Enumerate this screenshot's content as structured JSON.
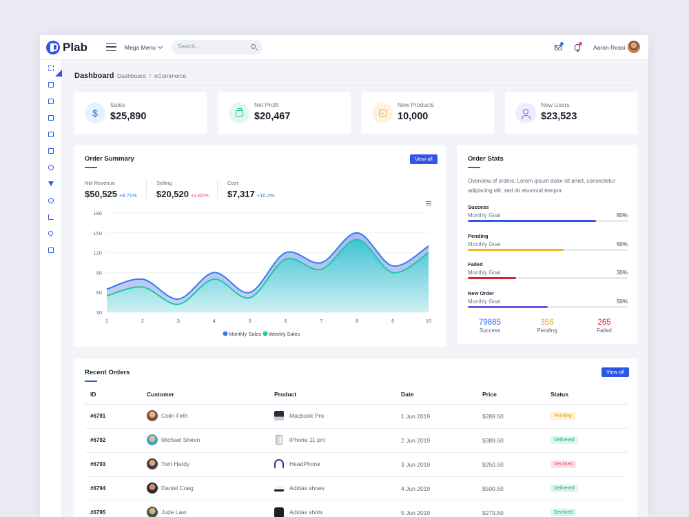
{
  "app": {
    "name": "Plab"
  },
  "topbar": {
    "mega_menu": "Mega Menu",
    "search_placeholder": "Search...",
    "user_name": "Aaron Rossi"
  },
  "page": {
    "title": "Dashboard",
    "breadcrumb": [
      "Dashboard",
      "/",
      "eCommerce"
    ]
  },
  "stats": [
    {
      "label": "Sales",
      "value": "$25,890",
      "icon": "dollar-icon",
      "color": "#2f6ff0",
      "bg": "#e8effd"
    },
    {
      "label": "Net Profit",
      "value": "$20,467",
      "icon": "briefcase-icon",
      "color": "#1cb89a",
      "bg": "#e3f7f2"
    },
    {
      "label": "New Products",
      "value": "10,000",
      "icon": "cart-icon",
      "color": "#e9a917",
      "bg": "#fdf4e0"
    },
    {
      "label": "New Users",
      "value": "$23,523",
      "icon": "users-icon",
      "color": "#7b62e0",
      "bg": "#efecfc"
    }
  ],
  "order_summary": {
    "title": "Order Summary",
    "view_all": "View all",
    "kpis": [
      {
        "label": "Net Revenue",
        "value": "$50,525",
        "delta": "+8.71%",
        "delta_color": "#2f6ff0"
      },
      {
        "label": "Selling",
        "value": "$20,520",
        "delta": "+2.82%",
        "delta_color": "#ee3a5a"
      },
      {
        "label": "Cost",
        "value": "$7,317",
        "delta": "+10.2%",
        "delta_color": "#2f6ff0"
      }
    ]
  },
  "chart_data": {
    "type": "area",
    "x": [
      1,
      2,
      3,
      4,
      5,
      6,
      7,
      8,
      9,
      10
    ],
    "ylim": [
      30,
      180
    ],
    "yticks": [
      30,
      60,
      90,
      120,
      150,
      180
    ],
    "grid": true,
    "legend": "bottom",
    "series": [
      {
        "name": "Monthly Sales",
        "color": "#2f7df0",
        "values": [
          65,
          80,
          50,
          90,
          60,
          120,
          105,
          150,
          100,
          130
        ]
      },
      {
        "name": "Weekly Sales",
        "color": "#1ec8a0",
        "values": [
          55,
          68,
          42,
          80,
          52,
          110,
          95,
          140,
          90,
          120
        ]
      }
    ]
  },
  "order_stats": {
    "title": "Order Stats",
    "description": "Overview of orders. Lorem ipsum dolor sit amet, consectetur adipiscing elit, sed do eiusmod tempor.",
    "goal_label": "Monthly Goal",
    "rows": [
      {
        "name": "Success",
        "pct": "80%",
        "value": 0.8,
        "color": "#2f56e6"
      },
      {
        "name": "Pending",
        "pct": "60%",
        "value": 0.6,
        "color": "#f5b71a"
      },
      {
        "name": "Failed",
        "pct": "30%",
        "value": 0.3,
        "color": "#cf2535"
      },
      {
        "name": "New Order",
        "pct": "50%",
        "value": 0.5,
        "color": "#6a55e0"
      }
    ],
    "counts": [
      {
        "value": "79885",
        "label": "Success",
        "color": "#2f6ff0"
      },
      {
        "value": "356",
        "label": "Pending",
        "color": "#f0a417"
      },
      {
        "value": "265",
        "label": "Failed",
        "color": "#d42b3b"
      }
    ]
  },
  "recent_orders": {
    "title": "Recent Orders",
    "view_all": "View all",
    "columns": [
      "ID",
      "Customer",
      "Product",
      "Date",
      "Price",
      "Status"
    ],
    "rows": [
      {
        "id": "#6791",
        "customer": "Colin Firth",
        "product": "Macbook Pro",
        "product_icon": "laptop-icon",
        "date": "1 Jun 2019",
        "price": "$289.50",
        "status": "Pending",
        "status_color": "#d9a21a",
        "status_bg": "#fdf2d6"
      },
      {
        "id": "#6792",
        "customer": "Michael Sheen",
        "product": "iPhone 11 pro",
        "product_icon": "phone-icon",
        "date": "2 Jun 2019",
        "price": "$389.50",
        "status": "Delivered",
        "status_color": "#18a57c",
        "status_bg": "#dbf6ec"
      },
      {
        "id": "#6793",
        "customer": "Tom Hardy",
        "product": "HeadPhone",
        "product_icon": "headphone-icon",
        "date": "3 Jun 2019",
        "price": "$250.50",
        "status": "Declined",
        "status_color": "#e0435a",
        "status_bg": "#fde3e7"
      },
      {
        "id": "#6794",
        "customer": "Daniel Craig",
        "product": "Adidas shoes",
        "product_icon": "shoe-icon",
        "date": "4 Jun 2019",
        "price": "$500.50",
        "status": "Delivered",
        "status_color": "#18a57c",
        "status_bg": "#dbf6ec"
      },
      {
        "id": "#6795",
        "customer": "Jude Law",
        "product": "Adidas shirts",
        "product_icon": "shirt-icon",
        "date": "5 Jun 2019",
        "price": "$279.50",
        "status": "Declined",
        "status_color": "#18a57c",
        "status_bg": "#dbf6ec"
      }
    ]
  }
}
